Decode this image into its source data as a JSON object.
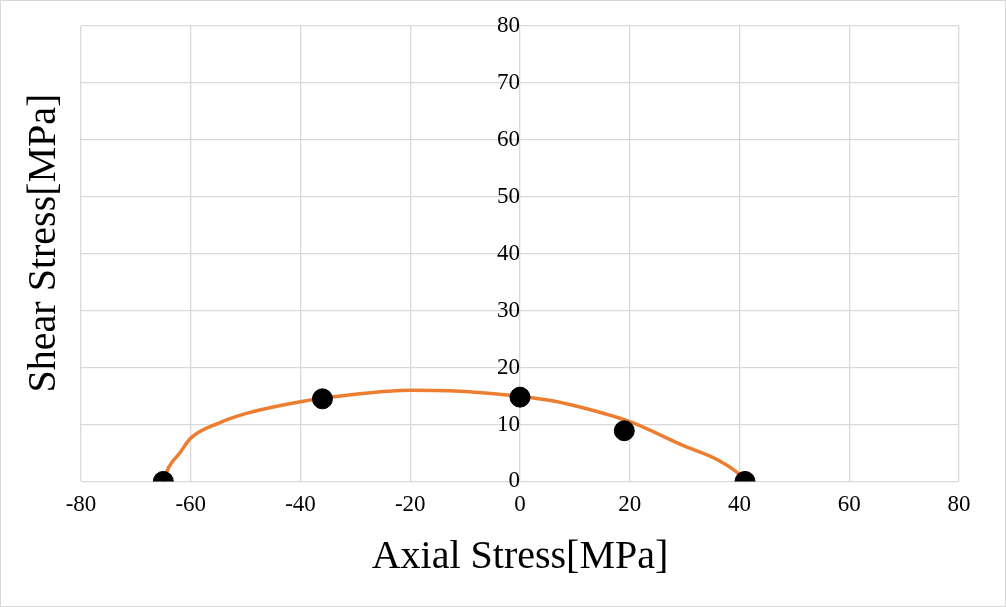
{
  "chart_data": {
    "type": "scatter",
    "xlabel": "Axial Stress[MPa]",
    "ylabel": "Shear Stress[MPa]",
    "xlim": [
      -80,
      80
    ],
    "xticks": [
      -80,
      -60,
      -40,
      -20,
      0,
      20,
      40,
      60,
      80
    ],
    "ylim": [
      0,
      80
    ],
    "yticks": [
      0,
      10,
      20,
      30,
      40,
      50,
      60,
      70,
      80
    ],
    "grid": true,
    "legend": false,
    "series": [
      {
        "type": "line",
        "color": "#ed7d31",
        "marker": "none",
        "x": [
          -65,
          -64,
          -62,
          -60,
          -55,
          -50,
          -40,
          -30,
          -20,
          -10,
          5,
          10,
          20,
          30,
          36,
          40,
          41
        ],
        "values": [
          0,
          2.5,
          5,
          7.6,
          10.2,
          11.9,
          14,
          15.3,
          16,
          15.8,
          14.3,
          13.3,
          10.5,
          6.2,
          3.8,
          1.2,
          0
        ]
      },
      {
        "type": "scatter",
        "color": "#000000",
        "marker": "circle",
        "x": [
          -65,
          -36,
          0,
          19,
          41
        ],
        "values": [
          0,
          14.5,
          14.8,
          8.9,
          0
        ]
      }
    ]
  }
}
